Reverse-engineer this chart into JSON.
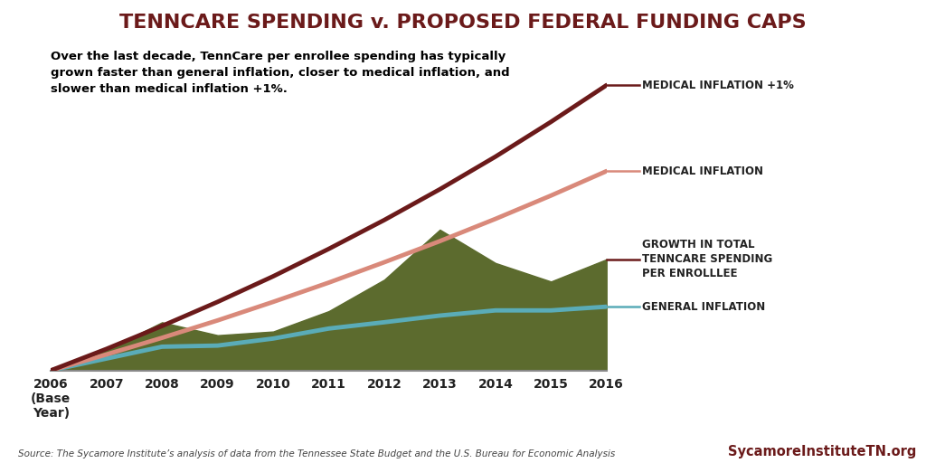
{
  "title": "TENNCARE SPENDING v. PROPOSED FEDERAL FUNDING CAPS",
  "subtitle": "Over the last decade, TennCare per enrollee spending has typically\ngrown faster than general inflation, closer to medical inflation, and\nslower than medical inflation +1%.",
  "years": [
    2006,
    2007,
    2008,
    2009,
    2010,
    2011,
    2012,
    2013,
    2014,
    2015,
    2016
  ],
  "medical_inflation_plus1": [
    0,
    0.058,
    0.12,
    0.185,
    0.254,
    0.328,
    0.406,
    0.489,
    0.577,
    0.671,
    0.77
  ],
  "medical_inflation": [
    0,
    0.043,
    0.088,
    0.135,
    0.185,
    0.237,
    0.292,
    0.349,
    0.409,
    0.472,
    0.538
  ],
  "general_inflation": [
    0,
    0.032,
    0.064,
    0.067,
    0.086,
    0.113,
    0.13,
    0.148,
    0.162,
    0.162,
    0.172
  ],
  "tenncare_spending": [
    0,
    0.055,
    0.13,
    0.095,
    0.105,
    0.16,
    0.245,
    0.38,
    0.29,
    0.24,
    0.3
  ],
  "color_medical_inflation_plus1": "#6B1A1A",
  "color_medical_inflation": "#D9897A",
  "color_general_inflation": "#5AACB8",
  "color_tenncare": "#5C6B2E",
  "title_color": "#6B1A1A",
  "subtitle_color": "#000000",
  "background_color": "#FFFFFF",
  "source_text": "Source: The Sycamore Institute’s analysis of data from the Tennessee State Budget and the U.S. Bureau for Economic Analysis",
  "source_brand": "SycamoreInstituteTN.org",
  "label_med_plus1": "MEDICAL INFLATION +1%",
  "label_med": "MEDICAL INFLATION",
  "label_gen": "GENERAL INFLATION",
  "label_tenncare": "GROWTH IN TOTAL\nTENNCARE SPENDING\nPER ENROLLLEE"
}
